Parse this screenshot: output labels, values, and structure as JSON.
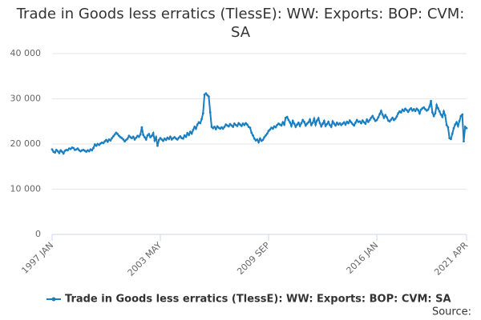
{
  "chart_data": {
    "type": "line",
    "title": "Trade in Goods less erratics (TlessE): WW: Exports: BOP: CVM: SA",
    "source": "Source:",
    "categories": [
      "1997 JAN",
      null,
      null,
      null,
      null,
      null,
      null,
      null,
      null,
      null,
      null,
      null,
      null,
      null,
      null,
      null,
      null,
      null,
      null,
      null,
      null,
      null,
      null,
      null,
      null,
      null,
      null,
      null,
      null,
      null,
      null,
      null,
      null,
      null,
      null,
      null,
      null,
      null,
      null,
      null,
      null,
      null,
      null,
      null,
      null,
      null,
      null,
      null,
      null,
      null,
      null,
      null,
      null,
      null,
      null,
      null,
      null,
      null,
      null,
      null,
      null,
      null,
      null,
      null,
      null,
      null,
      null,
      null,
      null,
      null,
      null,
      null,
      null,
      null,
      null,
      null,
      "2003 MAY",
      null,
      null,
      null,
      null,
      null,
      null,
      null,
      null,
      null,
      null,
      null,
      null,
      null,
      null,
      null,
      null,
      null,
      null,
      null,
      null,
      null,
      null,
      null,
      null,
      null,
      null,
      null,
      null,
      null,
      null,
      null,
      null,
      null,
      null,
      null,
      null,
      null,
      null,
      null,
      null,
      null,
      null,
      null,
      null,
      null,
      null,
      null,
      null,
      null,
      null,
      null,
      null,
      null,
      null,
      null,
      null,
      null,
      null,
      null,
      null,
      null,
      null,
      null,
      null,
      null,
      null,
      null,
      null,
      null,
      null,
      null,
      null,
      null,
      null,
      null,
      "2009 SEP",
      null,
      null,
      null,
      null,
      null,
      null,
      null,
      null,
      null,
      null,
      null,
      null,
      null,
      null,
      null,
      null,
      null,
      null,
      null,
      null,
      null,
      null,
      null,
      null,
      null,
      null,
      null,
      null,
      null,
      null,
      null,
      null,
      null,
      null,
      null,
      null,
      null,
      null,
      null,
      null,
      null,
      null,
      null,
      null,
      null,
      null,
      null,
      null,
      null,
      null,
      null,
      null,
      null,
      null,
      null,
      null,
      null,
      null,
      null,
      null,
      null,
      null,
      null,
      null,
      null,
      null,
      null,
      null,
      null,
      null,
      null,
      null,
      null,
      null,
      null,
      "2016 JAN",
      null,
      null,
      null,
      null,
      null,
      null,
      null,
      null,
      null,
      null,
      null,
      null,
      null,
      null,
      null,
      null,
      null,
      null,
      null,
      null,
      null,
      null,
      null,
      null,
      null,
      null,
      null,
      null,
      null,
      null,
      null,
      null,
      null,
      null,
      null,
      null,
      null,
      null,
      null,
      null,
      null,
      null,
      null,
      null,
      null,
      null,
      null,
      null,
      null,
      null,
      null,
      null,
      null,
      null,
      null,
      null,
      null,
      null,
      null,
      null,
      null,
      null,
      "2021 APR"
    ],
    "series": [
      {
        "name": "Trade in Goods less erratics (TlessE): WW: Exports: BOP: CVM: SA",
        "color": "#1a7fc1",
        "values": [
          18800,
          18300,
          18100,
          18700,
          18400,
          18000,
          18600,
          18300,
          17900,
          18500,
          18700,
          18600,
          19000,
          18900,
          19200,
          19100,
          18700,
          18800,
          19000,
          18600,
          18400,
          18600,
          18700,
          18500,
          18300,
          18600,
          18400,
          18800,
          18600,
          19100,
          19900,
          19600,
          20000,
          19800,
          20100,
          20300,
          20200,
          20600,
          20900,
          20500,
          21000,
          20800,
          21300,
          21700,
          22100,
          22500,
          22200,
          21800,
          21500,
          21300,
          21000,
          20600,
          20900,
          21200,
          21800,
          21500,
          21300,
          21600,
          21000,
          21400,
          21800,
          21600,
          22100,
          23700,
          22000,
          21500,
          21000,
          21900,
          22200,
          21500,
          21800,
          22400,
          20800,
          21500,
          19600,
          20900,
          21300,
          21000,
          20700,
          21200,
          20900,
          21400,
          21100,
          21600,
          21000,
          21300,
          21500,
          21200,
          21000,
          21400,
          21700,
          21300,
          21200,
          21900,
          21600,
          22400,
          22000,
          22700,
          22300,
          23100,
          23800,
          23400,
          24300,
          24800,
          24600,
          25500,
          26800,
          30900,
          31200,
          30800,
          30500,
          27000,
          23800,
          23500,
          23800,
          23300,
          23900,
          23600,
          23400,
          23700,
          23400,
          23800,
          24300,
          24100,
          23900,
          24400,
          24100,
          23800,
          24500,
          24200,
          24000,
          24600,
          24300,
          24000,
          24500,
          24200,
          24600,
          24300,
          23800,
          23600,
          22500,
          21900,
          21200,
          20800,
          21000,
          20400,
          21200,
          20700,
          20900,
          21500,
          21900,
          22300,
          22900,
          23200,
          23600,
          23400,
          23900,
          23700,
          24200,
          24500,
          24300,
          24100,
          24800,
          24300,
          25800,
          26000,
          25300,
          24800,
          24000,
          25100,
          24500,
          23800,
          24300,
          24700,
          24000,
          24600,
          25300,
          24900,
          24100,
          24500,
          24800,
          25400,
          24200,
          24700,
          25600,
          24300,
          25200,
          25700,
          24600,
          23900,
          24500,
          25100,
          24000,
          24400,
          24900,
          24200,
          23800,
          25000,
          24500,
          24100,
          24700,
          24300,
          24600,
          24200,
          24500,
          24800,
          24300,
          24900,
          24600,
          25200,
          24800,
          24400,
          24100,
          24700,
          25300,
          24900,
          25000,
          24600,
          25200,
          24800,
          24500,
          25400,
          24900,
          25300,
          25800,
          26200,
          25600,
          25100,
          25300,
          25900,
          26600,
          27300,
          26500,
          25800,
          26400,
          25900,
          25200,
          25000,
          25400,
          25800,
          25300,
          25600,
          26100,
          26800,
          27200,
          27000,
          27600,
          27300,
          27800,
          27500,
          27100,
          27600,
          27900,
          27400,
          27700,
          27300,
          27800,
          27500,
          26800,
          27600,
          27900,
          28100,
          27700,
          27400,
          27600,
          28300,
          29500,
          27000,
          26200,
          26800,
          28600,
          27900,
          27200,
          26500,
          26000,
          27200,
          26300,
          24200,
          23700,
          21300,
          21100,
          22300,
          23500,
          24300,
          24800,
          24000,
          25100,
          26200,
          26500,
          20600,
          23800,
          23500
        ]
      }
    ],
    "ylim": [
      0,
      40000
    ],
    "yticks": [
      0,
      {
        "value": 10000,
        "label": "10 000"
      },
      {
        "value": 20000,
        "label": "20 000"
      },
      {
        "value": 30000,
        "label": "30 000"
      },
      {
        "value": 40000,
        "label": "40 000"
      }
    ],
    "grid": true
  }
}
